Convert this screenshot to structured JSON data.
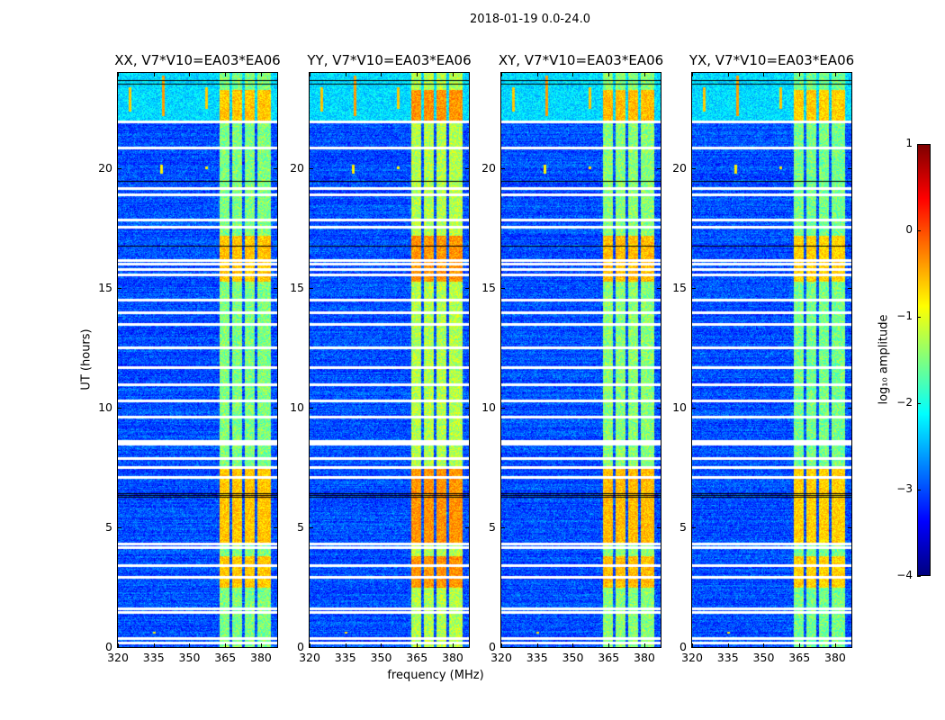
{
  "chart_data": {
    "type": "heatmap",
    "title": "2018-01-19 0.0-24.0",
    "xlabel": "frequency (MHz)",
    "ylabel": "UT (hours)",
    "xlim": [
      320,
      386.8
    ],
    "ylim": [
      0,
      24
    ],
    "xticks": [
      "320",
      "335",
      "350",
      "365",
      "380"
    ],
    "xtick_values": [
      320,
      335,
      350,
      365,
      380
    ],
    "yticks": [
      "0",
      "5",
      "10",
      "15",
      "20"
    ],
    "ytick_values": [
      0,
      5,
      10,
      15,
      20
    ],
    "colormap": "jet",
    "colorbar": {
      "label": "log₁₀ amplitude",
      "range": [
        -4,
        1
      ],
      "ticks": [
        "−4",
        "−3",
        "−2",
        "−1",
        "0",
        "1"
      ],
      "tick_values": [
        -4,
        -3,
        -2,
        -1,
        0,
        1
      ]
    },
    "panels": [
      {
        "title": "XX, V7*V10=EA03*EA06",
        "gain": 0.0
      },
      {
        "title": "YY, V7*V10=EA03*EA06",
        "gain": 0.25
      },
      {
        "title": "XY, V7*V10=EA03*EA06",
        "gain": 0.05
      },
      {
        "title": "YX, V7*V10=EA03*EA06",
        "gain": -0.05
      }
    ],
    "background_log_amplitude": -3.0,
    "band": {
      "freq_range": [
        362.3,
        383.8
      ],
      "gaps_mhz": [
        367.2,
        372.5,
        377.7
      ],
      "log_amplitude": -1.5
    },
    "band_enhanced_hours": [
      [
        15.3,
        17.2
      ],
      [
        4.3,
        7.5
      ],
      [
        21.9,
        23.3
      ],
      [
        2.5,
        3.8
      ]
    ],
    "band_enhanced_log_amplitude": -0.6,
    "early_high_hours": [
      21.9,
      24.0
    ],
    "early_high_log_amplitude": -2.3,
    "rfi_spikes": [
      {
        "freq": 325,
        "hours": [
          22.4,
          23.4
        ],
        "log_amplitude": -0.6
      },
      {
        "freq": 339,
        "hours": [
          22.2,
          23.9
        ],
        "log_amplitude": -0.4
      },
      {
        "freq": 357,
        "hours": [
          22.5,
          23.4
        ],
        "log_amplitude": -0.6
      },
      {
        "freq": 338,
        "hours": [
          19.8,
          20.2
        ],
        "log_amplitude": -0.8
      },
      {
        "freq": 357,
        "hours": [
          20.0,
          20.1
        ],
        "log_amplitude": -0.8
      },
      {
        "freq": 335,
        "hours": [
          0.6,
          0.65
        ],
        "log_amplitude": -0.8
      }
    ],
    "flagged_hours": [
      21.95,
      20.86,
      19.18,
      18.91,
      17.87,
      17.57,
      16.18,
      16.03,
      15.81,
      15.58,
      14.53,
      14.01,
      13.52,
      12.51,
      11.69,
      10.97,
      10.3,
      9.63,
      8.61,
      8.5,
      7.9,
      7.53,
      7.12,
      4.31,
      4.16,
      3.41,
      2.92,
      1.61,
      1.46,
      0.37,
      0.19
    ],
    "dark_hours": [
      23.7,
      23.55,
      19.48,
      16.78,
      6.44,
      6.36,
      6.29
    ]
  }
}
